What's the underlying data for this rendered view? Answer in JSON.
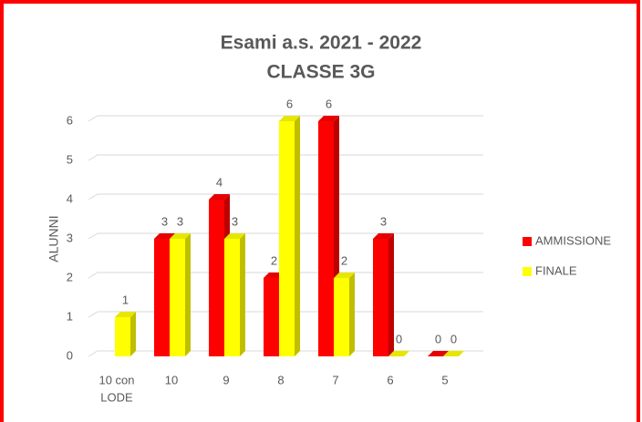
{
  "chart_data": {
    "type": "bar3d",
    "title": "Esami a.s. 2021 - 2022",
    "subtitle": "CLASSE 3G",
    "y_label": "ALUNNI",
    "categories": [
      [
        "10 con",
        "LODE"
      ],
      "10",
      "9",
      "8",
      "7",
      "6",
      "5"
    ],
    "series": [
      {
        "name": "AMMISSIONE",
        "color": "#ff0000",
        "values": [
          null,
          3,
          4,
          2,
          6,
          3,
          0
        ]
      },
      {
        "name": "FINALE",
        "color": "#ffff00",
        "values": [
          1,
          3,
          3,
          6,
          2,
          0,
          0
        ]
      }
    ],
    "ylim": [
      0,
      6
    ],
    "yticks": [
      0,
      1,
      2,
      3,
      4,
      5,
      6
    ],
    "grid": true,
    "legend": "right"
  }
}
